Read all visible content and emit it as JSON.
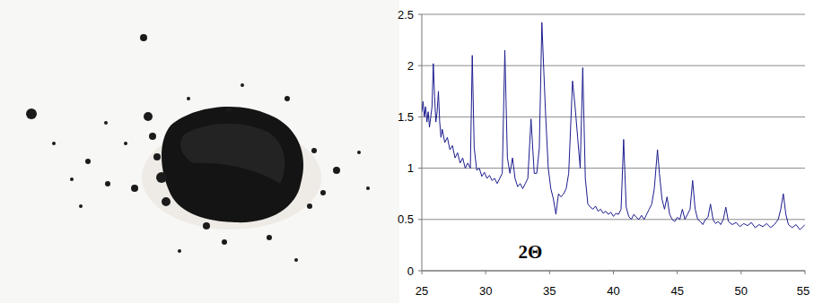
{
  "chart_data": {
    "type": "line",
    "xlabel": "2Θ",
    "color": "#1c1c8e",
    "grid": true,
    "xlim": [
      25,
      55
    ],
    "xticks": [
      25,
      30,
      35,
      40,
      45,
      50,
      55
    ],
    "ylim": [
      0,
      2.5
    ],
    "yticks": [
      0,
      0.5,
      1,
      1.5,
      2,
      2.5
    ],
    "x": [
      25.0,
      25.1,
      25.2,
      25.3,
      25.4,
      25.5,
      25.6,
      25.7,
      25.8,
      25.9,
      26.0,
      26.1,
      26.2,
      26.3,
      26.4,
      26.5,
      26.6,
      26.8,
      27.0,
      27.2,
      27.4,
      27.6,
      27.8,
      28.0,
      28.2,
      28.4,
      28.6,
      28.8,
      28.95,
      29.1,
      29.3,
      29.5,
      29.7,
      29.9,
      30.1,
      30.3,
      30.5,
      30.7,
      30.9,
      31.1,
      31.3,
      31.5,
      31.7,
      31.9,
      32.1,
      32.3,
      32.5,
      32.7,
      32.9,
      33.1,
      33.3,
      33.55,
      33.8,
      34.0,
      34.2,
      34.4,
      34.55,
      34.7,
      34.9,
      35.1,
      35.3,
      35.5,
      35.7,
      35.9,
      36.1,
      36.3,
      36.5,
      36.8,
      37.0,
      37.2,
      37.4,
      37.6,
      37.8,
      38.0,
      38.2,
      38.4,
      38.6,
      38.8,
      39.0,
      39.2,
      39.4,
      39.6,
      39.8,
      40.0,
      40.2,
      40.4,
      40.6,
      40.8,
      41.0,
      41.2,
      41.4,
      41.6,
      41.8,
      42.0,
      42.2,
      42.4,
      42.6,
      42.8,
      43.0,
      43.2,
      43.45,
      43.6,
      43.8,
      44.0,
      44.2,
      44.4,
      44.6,
      44.8,
      45.0,
      45.2,
      45.4,
      45.6,
      45.8,
      46.0,
      46.2,
      46.4,
      46.6,
      46.8,
      47.0,
      47.2,
      47.4,
      47.6,
      47.8,
      48.0,
      48.2,
      48.4,
      48.6,
      48.8,
      49.0,
      49.3,
      49.6,
      49.9,
      50.2,
      50.5,
      50.8,
      51.1,
      51.4,
      51.7,
      52.0,
      52.3,
      52.6,
      52.9,
      53.1,
      53.3,
      53.5,
      53.7,
      54.0,
      54.3,
      54.6,
      55.0
    ],
    "values": [
      1.55,
      1.65,
      1.5,
      1.6,
      1.45,
      1.55,
      1.4,
      1.5,
      1.6,
      2.02,
      1.7,
      1.45,
      1.55,
      1.75,
      1.45,
      1.3,
      1.38,
      1.25,
      1.3,
      1.18,
      1.22,
      1.1,
      1.15,
      1.05,
      1.1,
      1.0,
      1.05,
      1.0,
      2.1,
      1.2,
      0.98,
      1.0,
      0.92,
      0.96,
      0.9,
      0.93,
      0.88,
      0.9,
      0.85,
      0.9,
      0.95,
      2.15,
      1.1,
      0.95,
      1.1,
      0.9,
      0.82,
      0.85,
      0.8,
      0.85,
      0.9,
      1.48,
      0.95,
      0.95,
      1.2,
      2.42,
      1.95,
      1.5,
      1.0,
      0.8,
      0.7,
      0.55,
      0.75,
      0.72,
      0.75,
      0.8,
      0.95,
      1.85,
      1.6,
      1.3,
      1.0,
      1.98,
      0.9,
      0.65,
      0.62,
      0.6,
      0.63,
      0.58,
      0.6,
      0.56,
      0.58,
      0.55,
      0.57,
      0.53,
      0.56,
      0.55,
      0.6,
      1.28,
      0.62,
      0.53,
      0.5,
      0.55,
      0.52,
      0.5,
      0.54,
      0.5,
      0.55,
      0.6,
      0.65,
      0.8,
      1.18,
      0.95,
      0.7,
      0.6,
      0.72,
      0.55,
      0.5,
      0.48,
      0.52,
      0.5,
      0.6,
      0.5,
      0.55,
      0.6,
      0.88,
      0.6,
      0.5,
      0.48,
      0.45,
      0.5,
      0.52,
      0.65,
      0.5,
      0.46,
      0.48,
      0.45,
      0.5,
      0.62,
      0.48,
      0.45,
      0.47,
      0.43,
      0.46,
      0.44,
      0.47,
      0.42,
      0.45,
      0.43,
      0.46,
      0.42,
      0.45,
      0.5,
      0.6,
      0.75,
      0.55,
      0.45,
      0.42,
      0.45,
      0.4,
      0.45
    ]
  }
}
